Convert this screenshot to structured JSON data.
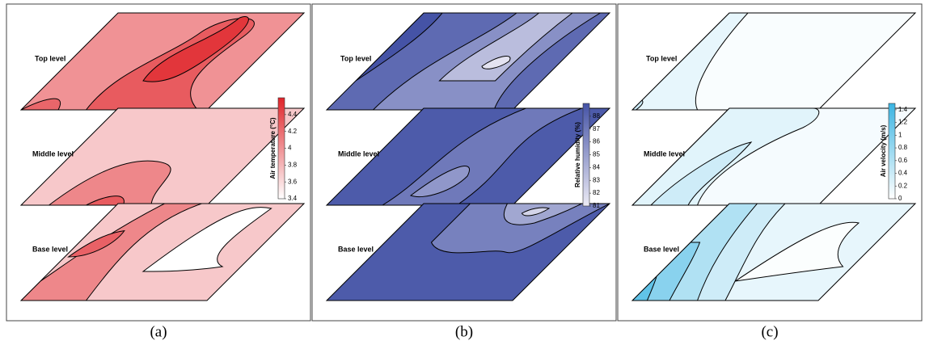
{
  "chart_data": [
    {
      "type": "contour",
      "panel_label": "(a)",
      "colorbar_label": "Air temperature (°C)",
      "clim": [
        3.4,
        4.6
      ],
      "cticks": [
        3.4,
        3.6,
        3.8,
        4,
        4.2,
        4.4
      ],
      "colors": [
        "#ffffff",
        "#e0242a"
      ],
      "levels": [
        "Top level",
        "Middle level",
        "Base level"
      ]
    },
    {
      "type": "contour",
      "panel_label": "(b)",
      "colorbar_label": "Relative humidity (%)",
      "clim": [
        81,
        89
      ],
      "cticks": [
        81,
        82,
        83,
        84,
        85,
        86,
        87,
        88
      ],
      "colors": [
        "#ecebf5",
        "#4553a6"
      ],
      "levels": [
        "Top level",
        "Middle level",
        "Base level"
      ]
    },
    {
      "type": "contour",
      "panel_label": "(c)",
      "colorbar_label": "Air velocity (m/s)",
      "clim": [
        0,
        1.5
      ],
      "cticks": [
        0,
        0.2,
        0.4,
        0.6,
        0.8,
        1,
        1.2,
        1.4
      ],
      "colors": [
        "#ffffff",
        "#3ab4e2"
      ],
      "levels": [
        "Top level",
        "Middle level",
        "Base level"
      ]
    }
  ]
}
